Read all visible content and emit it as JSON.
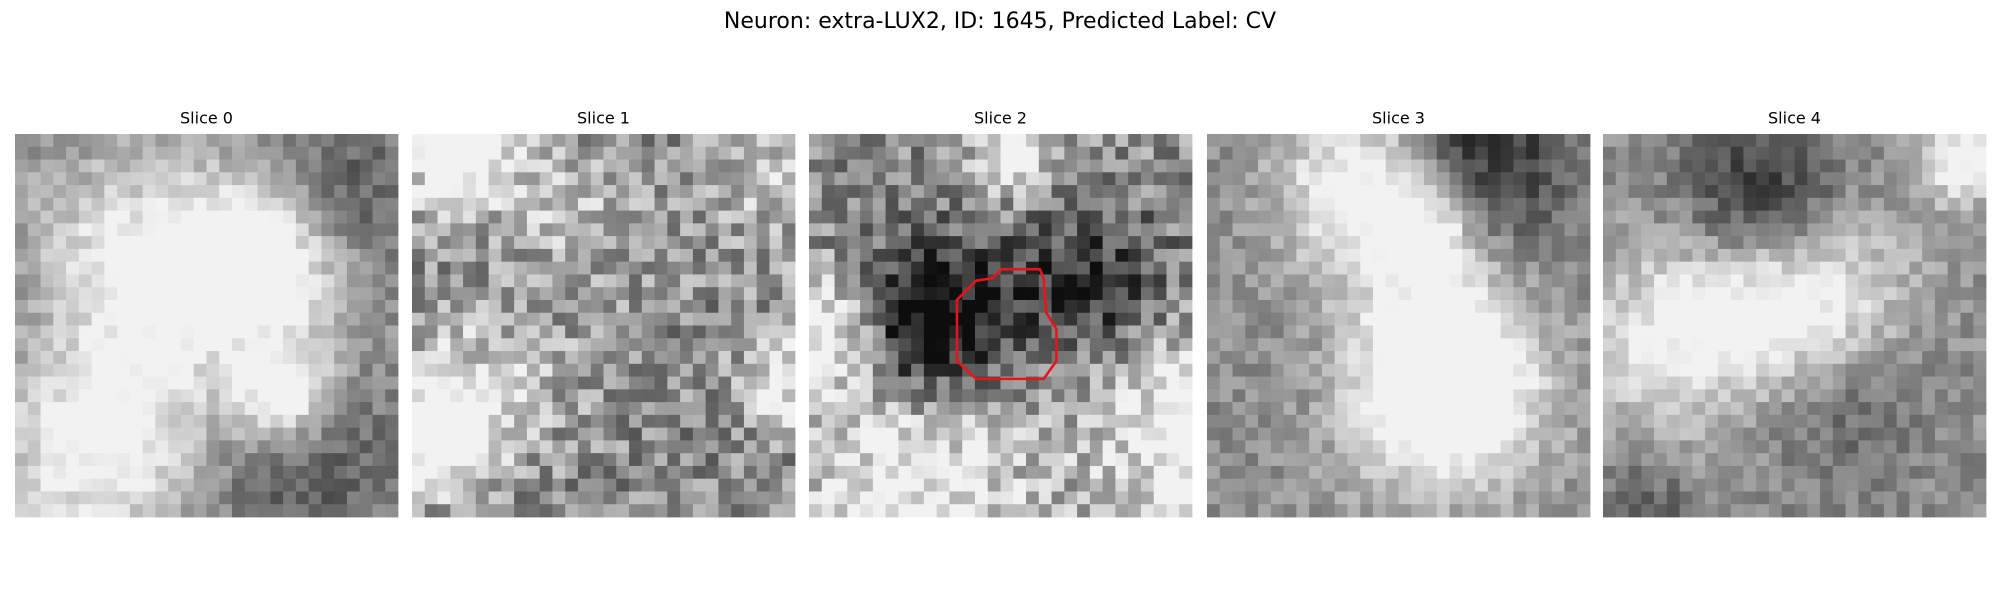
{
  "title": "Neuron: extra-LUX2, ID: 1645, Predicted Label: CV",
  "panels": [
    {
      "title": "Slice 0"
    },
    {
      "title": "Slice 1"
    },
    {
      "title": "Slice 2"
    },
    {
      "title": "Slice 3"
    },
    {
      "title": "Slice 4"
    }
  ]
}
